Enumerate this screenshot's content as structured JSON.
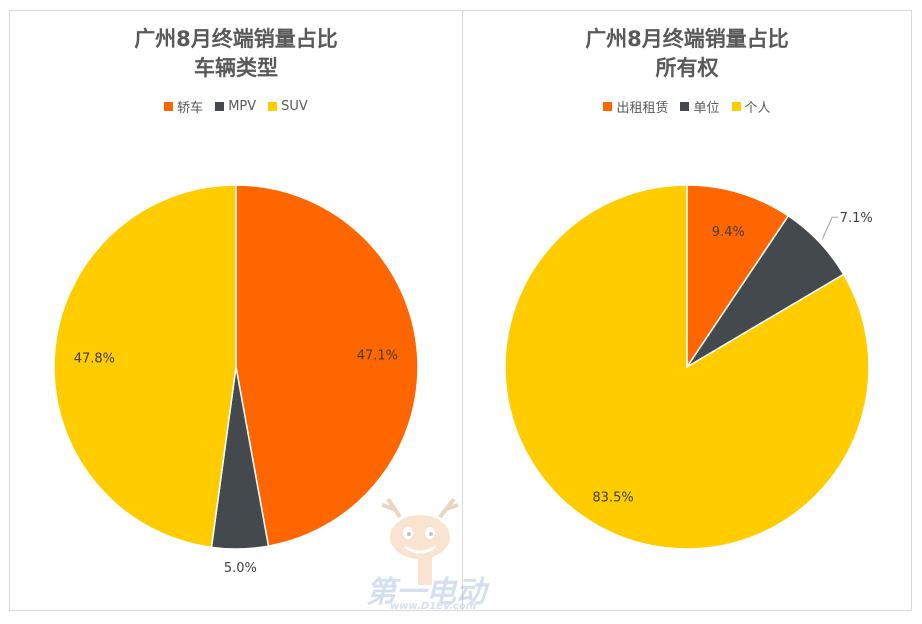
{
  "chart_data": [
    {
      "type": "pie",
      "title": [
        "广州8月终端销量占比",
        "车辆类型"
      ],
      "legend_position": "top",
      "categories": [
        "轿车",
        "MPV",
        "SUV"
      ],
      "values": [
        47.1,
        5.0,
        47.8
      ],
      "labels": [
        "47.1%",
        "5.0%",
        "47.8%"
      ],
      "colors": [
        "#ff6600",
        "#44494d",
        "#ffcc00"
      ]
    },
    {
      "type": "pie",
      "title": [
        "广州8月终端销量占比",
        "所有权"
      ],
      "legend_position": "top",
      "categories": [
        "出租租赁",
        "单位",
        "个人"
      ],
      "values": [
        9.4,
        7.1,
        83.5
      ],
      "labels": [
        "9.4%",
        "7.1%",
        "83.5%"
      ],
      "colors": [
        "#ff6600",
        "#44494d",
        "#ffcc00"
      ]
    }
  ],
  "watermark": {
    "brand": "第一电动",
    "url": "www.D1EV.com"
  }
}
